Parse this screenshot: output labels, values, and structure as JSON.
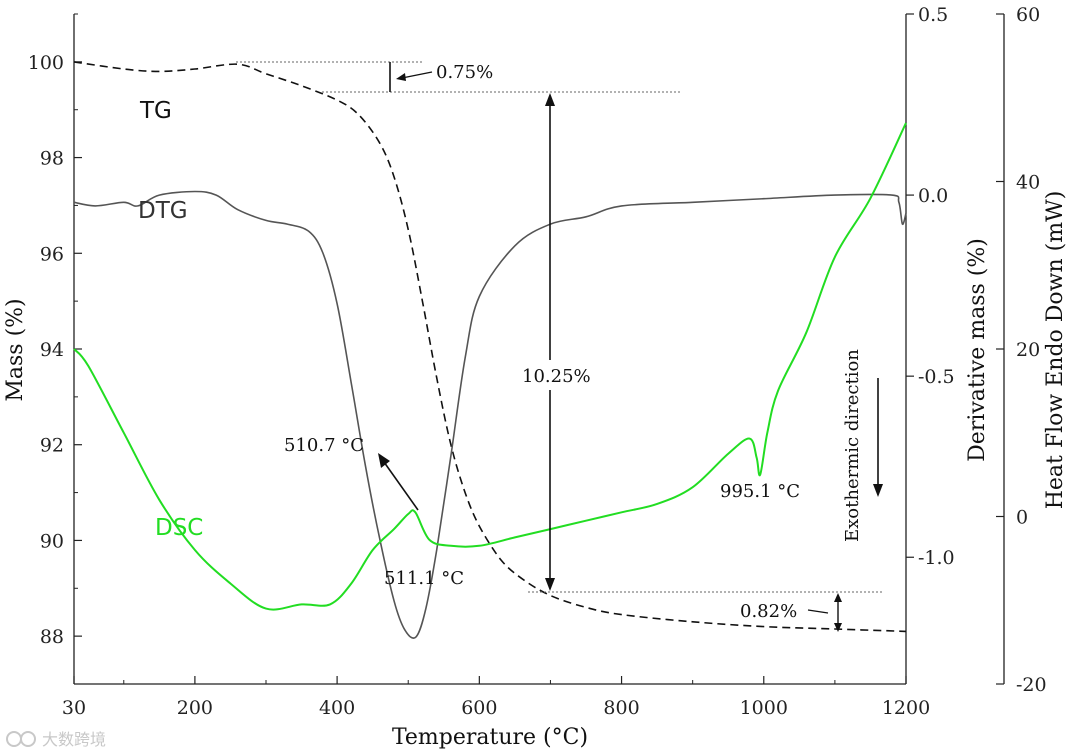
{
  "chart_data": {
    "type": "line",
    "xlabel": "Temperature (°C)",
    "ylabel_left": "Mass (%)",
    "ylabel_right1": "Derivative mass (%)",
    "ylabel_right2": "Heat Flow Endo Down (mW)",
    "x_range": [
      30,
      1200
    ],
    "y_left_range": [
      87,
      101
    ],
    "y_right1_range": [
      -1.35,
      0.5
    ],
    "y_right2_range": [
      -20,
      60
    ],
    "x_ticks": [
      "30",
      "200",
      "400",
      "600",
      "800",
      "1000",
      "1200"
    ],
    "y_left_ticks": [
      "88",
      "90",
      "92",
      "94",
      "96",
      "98",
      "100"
    ],
    "y_right1_ticks": [
      "-1.0",
      "-0.5",
      "0.0",
      "0.5"
    ],
    "y_right2_ticks": [
      "-20",
      "0",
      "20",
      "40",
      "60"
    ],
    "series": [
      {
        "name": "TG",
        "axis": "left",
        "color": "#111111",
        "style": "dashed",
        "x": [
          30,
          100,
          150,
          200,
          260,
          300,
          350,
          400,
          430,
          460,
          480,
          500,
          520,
          540,
          560,
          580,
          600,
          630,
          660,
          700,
          750,
          800,
          900,
          1000,
          1100,
          1200
        ],
        "y": [
          100.0,
          99.85,
          99.8,
          99.85,
          99.95,
          99.75,
          99.5,
          99.2,
          98.9,
          98.3,
          97.6,
          96.5,
          95.0,
          93.4,
          92.0,
          91.0,
          90.3,
          89.6,
          89.2,
          88.85,
          88.6,
          88.45,
          88.3,
          88.2,
          88.15,
          88.1
        ]
      },
      {
        "name": "DTG",
        "axis": "right1",
        "color": "#555555",
        "style": "solid",
        "x": [
          30,
          60,
          100,
          120,
          150,
          200,
          230,
          260,
          300,
          330,
          360,
          380,
          400,
          420,
          440,
          460,
          480,
          495,
          511,
          525,
          540,
          560,
          580,
          600,
          650,
          700,
          750,
          800,
          900,
          1000,
          1100,
          1180,
          1190,
          1195,
          1200
        ],
        "y": [
          -0.02,
          -0.03,
          -0.02,
          -0.03,
          0.0,
          0.01,
          0.0,
          -0.04,
          -0.07,
          -0.08,
          -0.1,
          -0.16,
          -0.3,
          -0.52,
          -0.75,
          -0.95,
          -1.12,
          -1.2,
          -1.22,
          -1.14,
          -0.98,
          -0.72,
          -0.45,
          -0.28,
          -0.14,
          -0.08,
          -0.06,
          -0.03,
          -0.02,
          -0.01,
          0.0,
          0.0,
          -0.02,
          -0.08,
          -0.05
        ]
      },
      {
        "name": "DSC",
        "axis": "right2",
        "color": "#22dd22",
        "style": "solid",
        "x": [
          30,
          50,
          100,
          150,
          200,
          250,
          300,
          350,
          390,
          420,
          450,
          480,
          500,
          510,
          530,
          560,
          600,
          650,
          700,
          750,
          800,
          850,
          900,
          950,
          980,
          990,
          995,
          1005,
          1020,
          1060,
          1100,
          1150,
          1200
        ],
        "y": [
          20,
          18,
          10,
          2,
          -4,
          -8,
          -11,
          -10.5,
          -10.5,
          -8,
          -4,
          -1.5,
          0.3,
          0.5,
          -2.8,
          -3.5,
          -3.5,
          -2.5,
          -1.5,
          -0.5,
          0.5,
          1.5,
          3.5,
          7.5,
          9.3,
          7.0,
          5.0,
          10.0,
          15.0,
          22.0,
          31.0,
          38.0,
          47.0
        ]
      }
    ],
    "annotations": {
      "tg_label": "TG",
      "dtg_label": "DTG",
      "dsc_label": "DSC",
      "loss1": "0.75%",
      "loss2": "10.25%",
      "loss3": "0.82%",
      "peak_dsc": "510.7 °C",
      "peak_dtg": "511.1 °C",
      "peak_995": "995.1 °C",
      "exo": "Exothermic direction"
    }
  },
  "watermark": "大数跨境"
}
